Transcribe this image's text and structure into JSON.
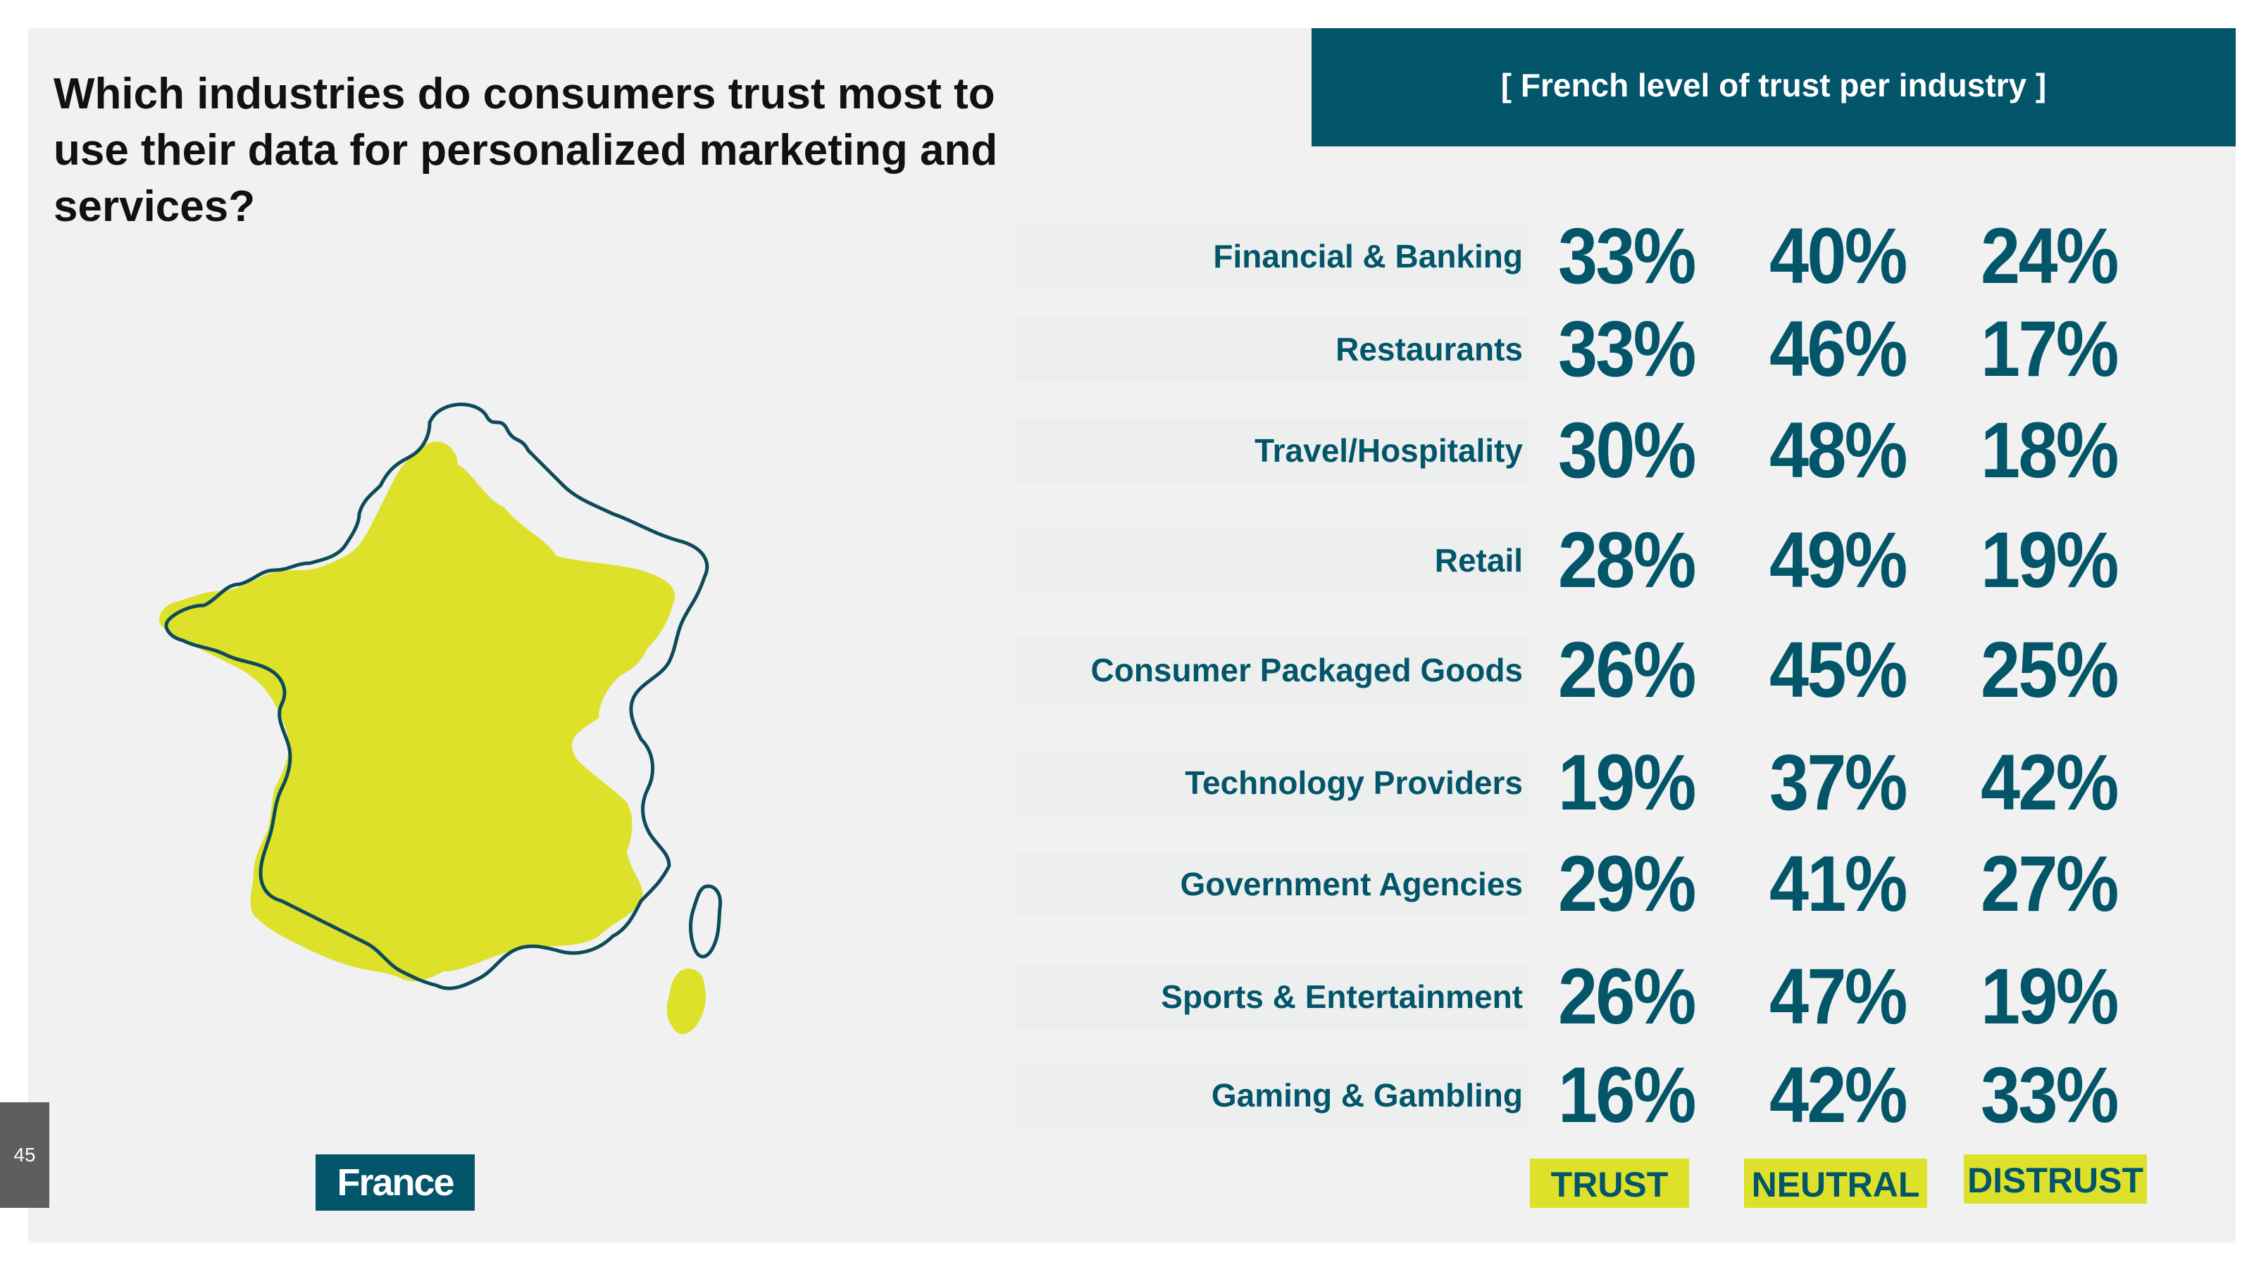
{
  "question": "Which industries do consumers trust most to use their data for personalized marketing and services?",
  "header": "[ French level of trust per industry ]",
  "country_label": "France",
  "page_number": "45",
  "colors": {
    "teal": "#03556a",
    "yellow": "#dde12a",
    "background": "#f0f1f0"
  },
  "map_icon": "france-map-icon",
  "chart_data": {
    "type": "table",
    "title": "[ French level of trust per industry ]",
    "columns": [
      "TRUST",
      "NEUTRAL",
      "DISTRUST"
    ],
    "rows": [
      {
        "label": "Financial & Banking",
        "trust": "33%",
        "neutral": "40%",
        "distrust": "24%"
      },
      {
        "label": "Restaurants",
        "trust": "33%",
        "neutral": "46%",
        "distrust": "17%"
      },
      {
        "label": "Travel/Hospitality",
        "trust": "30%",
        "neutral": "48%",
        "distrust": "18%"
      },
      {
        "label": "Retail",
        "trust": "28%",
        "neutral": "49%",
        "distrust": "19%"
      },
      {
        "label": "Consumer Packaged Goods",
        "trust": "26%",
        "neutral": "45%",
        "distrust": "25%"
      },
      {
        "label": "Technology Providers",
        "trust": "19%",
        "neutral": "37%",
        "distrust": "42%"
      },
      {
        "label": "Government Agencies",
        "trust": "29%",
        "neutral": "41%",
        "distrust": "27%"
      },
      {
        "label": "Sports & Entertainment",
        "trust": "26%",
        "neutral": "47%",
        "distrust": "19%"
      },
      {
        "label": "Gaming & Gambling",
        "trust": "16%",
        "neutral": "42%",
        "distrust": "33%"
      }
    ]
  }
}
